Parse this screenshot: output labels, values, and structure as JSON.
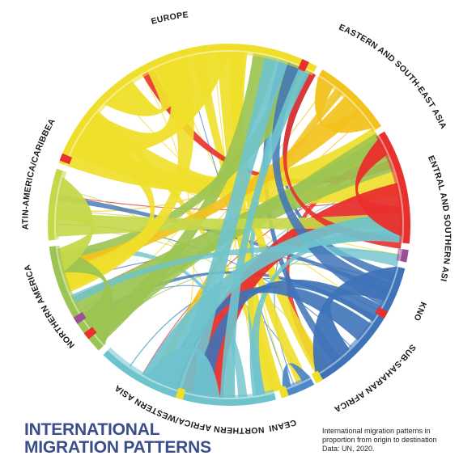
{
  "title": {
    "line1": "INTERNATIONAL",
    "line2": "MIGRATION PATTERNS"
  },
  "caption": "International migration patterns in proportion from origin to destination Data: UN, 2020.",
  "colors": {
    "europe": "#f0df2a",
    "eastern_se_asia": "#f3c21c",
    "central_southern_asia": "#e8302c",
    "unknown": "#9b4f96",
    "sub_saharan_africa": "#3f73b8",
    "oceania": "#4f87c8",
    "northern_africa_western_asia": "#6fc3cd",
    "northern_america": "#9cc452",
    "latin_america_caribbean": "#c5d84a",
    "title": "#3a4e8c"
  },
  "regions": [
    {
      "key": "europe",
      "label": "EUROPE",
      "color": "#f0df2a"
    },
    {
      "key": "eastern_se_asia",
      "label": "EASTERN AND SOUTH-EAST ASIA",
      "color": "#f3c21c"
    },
    {
      "key": "central_southern_asia",
      "label": "CENTRAL AND SOUTHERN ASIA",
      "color": "#e8302c"
    },
    {
      "key": "unknown",
      "label": "UNKNOWN",
      "color": "#9b4f96"
    },
    {
      "key": "sub_saharan_africa",
      "label": "SUB-SAHARAN AFRICA",
      "color": "#3f73b8"
    },
    {
      "key": "oceania",
      "label": "OCEANIA",
      "color": "#4f87c8"
    },
    {
      "key": "northern_africa_western_asia",
      "label": "NORTHERN AFRICA/WESTERN ASIA",
      "color": "#6fc3cd"
    },
    {
      "key": "northern_america",
      "label": "NORTHERN AMERICA",
      "color": "#9cc452"
    },
    {
      "key": "latin_america_caribbean",
      "label": "LATIN-AMERICA/CARIBBEAN",
      "color": "#c5d84a"
    }
  ]
}
